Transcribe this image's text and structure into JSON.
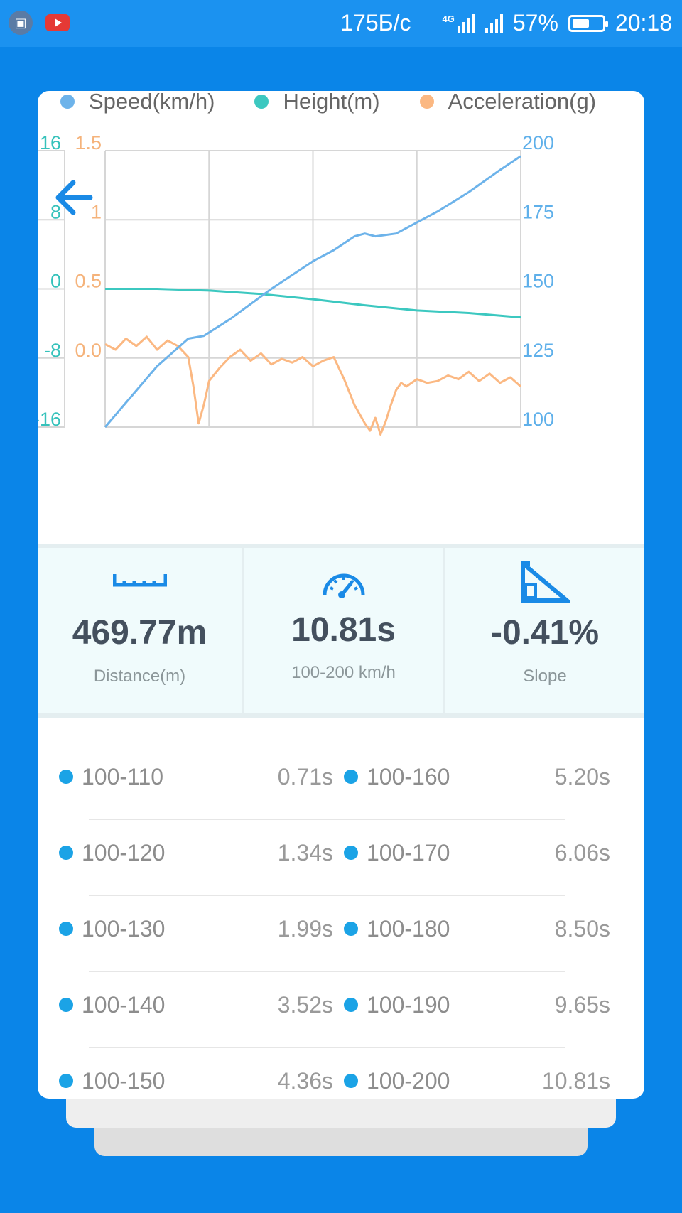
{
  "status_bar": {
    "speed": "175Б/с",
    "network": "4G",
    "battery": "57%",
    "battery_level": 0.57,
    "time": "20:18"
  },
  "legend": [
    {
      "label": "Speed(km/h)",
      "color": "#6db3ea"
    },
    {
      "label": "Height(m)",
      "color": "#3cc8c0"
    },
    {
      "label": "Acceleration(g)",
      "color": "#fbb882"
    }
  ],
  "chart_data": {
    "type": "line",
    "x_range": [
      0,
      4
    ],
    "grid": true,
    "axes": {
      "height_ticks": [
        "16",
        "8",
        "0",
        "-8",
        "-16"
      ],
      "accel_ticks": [
        "1.5",
        "1",
        "0.5",
        "0.0"
      ],
      "speed_ticks": [
        "200",
        "175",
        "150",
        "125",
        "100"
      ]
    },
    "series": [
      {
        "name": "Speed(km/h)",
        "axis": "speed",
        "ylim": [
          100,
          200
        ],
        "color": "#6db3ea",
        "x": [
          0,
          0.5,
          0.8,
          0.95,
          1.2,
          1.6,
          2.0,
          2.2,
          2.4,
          2.5,
          2.6,
          2.8,
          3.0,
          3.2,
          3.5,
          3.8,
          4.0
        ],
        "y": [
          100,
          122,
          132,
          133,
          139,
          150,
          160,
          164,
          169,
          170,
          169,
          170,
          174,
          178,
          185,
          193,
          198
        ]
      },
      {
        "name": "Height(m)",
        "axis": "height",
        "ylim": [
          -16,
          16
        ],
        "color": "#3cc8c0",
        "x": [
          0,
          0.5,
          1.0,
          1.5,
          2.0,
          2.5,
          3.0,
          3.5,
          4.0
        ],
        "y": [
          0,
          0,
          -0.2,
          -0.6,
          -1.2,
          -1.9,
          -2.5,
          -2.8,
          -3.3
        ]
      },
      {
        "name": "Acceleration(g)",
        "axis": "accel",
        "ylim": [
          0,
          1.5
        ],
        "color": "#fbb882",
        "x": [
          0,
          0.1,
          0.2,
          0.3,
          0.4,
          0.5,
          0.6,
          0.7,
          0.8,
          0.85,
          0.9,
          0.95,
          1.0,
          1.1,
          1.2,
          1.3,
          1.4,
          1.5,
          1.6,
          1.7,
          1.8,
          1.9,
          2.0,
          2.1,
          2.2,
          2.3,
          2.4,
          2.5,
          2.55,
          2.6,
          2.65,
          2.7,
          2.75,
          2.8,
          2.85,
          2.9,
          3.0,
          3.1,
          3.2,
          3.3,
          3.4,
          3.5,
          3.6,
          3.7,
          3.8,
          3.9,
          4.0
        ],
        "y": [
          0.45,
          0.42,
          0.48,
          0.44,
          0.49,
          0.42,
          0.47,
          0.44,
          0.38,
          0.22,
          0.02,
          0.12,
          0.25,
          0.32,
          0.38,
          0.42,
          0.36,
          0.4,
          0.34,
          0.37,
          0.35,
          0.38,
          0.33,
          0.36,
          0.38,
          0.26,
          0.12,
          0.02,
          -0.02,
          0.05,
          -0.04,
          0.03,
          0.12,
          0.2,
          0.24,
          0.22,
          0.26,
          0.24,
          0.25,
          0.28,
          0.26,
          0.3,
          0.25,
          0.29,
          0.24,
          0.27,
          0.22
        ]
      }
    ]
  },
  "stats": [
    {
      "value": "469.77m",
      "label": "Distance(m)"
    },
    {
      "value": "10.81s",
      "label": "100-200 km/h"
    },
    {
      "value": "-0.41%",
      "label": "Slope"
    }
  ],
  "splits": [
    {
      "left_range": "100-110",
      "left_time": "0.71s",
      "right_range": "100-160",
      "right_time": "5.20s"
    },
    {
      "left_range": "100-120",
      "left_time": "1.34s",
      "right_range": "100-170",
      "right_time": "6.06s"
    },
    {
      "left_range": "100-130",
      "left_time": "1.99s",
      "right_range": "100-180",
      "right_time": "8.50s"
    },
    {
      "left_range": "100-140",
      "left_time": "3.52s",
      "right_range": "100-190",
      "right_time": "9.65s"
    },
    {
      "left_range": "100-150",
      "left_time": "4.36s",
      "right_range": "100-200",
      "right_time": "10.81s"
    }
  ]
}
